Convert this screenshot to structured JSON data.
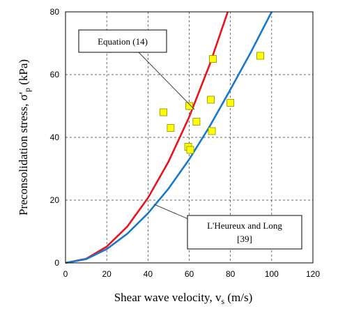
{
  "chart_data": {
    "type": "scatter",
    "xlabel": "Shear wave velocity, v",
    "xlabel_sub": "s",
    "xlabel_unit": " (m/s)",
    "ylabel": "Preconsolidation stress, σ'",
    "ylabel_sub": "p",
    "ylabel_unit": " (kPa)",
    "xlim": [
      0,
      120
    ],
    "ylim": [
      0,
      80
    ],
    "x_ticks": [
      0,
      20,
      40,
      60,
      80,
      100,
      120
    ],
    "y_ticks": [
      0,
      20,
      40,
      60,
      80
    ],
    "grid": "dashed",
    "series": [
      {
        "label": "Equation (14)",
        "kind": "line",
        "color": "#e8141b",
        "x": [
          0,
          10,
          20,
          30,
          40,
          50,
          60,
          70,
          78.7
        ],
        "y": [
          0,
          1.3,
          5.2,
          11.6,
          20.7,
          32.3,
          46.5,
          63.3,
          80
        ]
      },
      {
        "label": "L'Heureux  and Long",
        "label_ref": "[39]",
        "kind": "line",
        "color": "#1a78c8",
        "x": [
          0,
          10,
          20,
          30,
          40,
          50,
          60,
          70,
          80,
          90,
          100
        ],
        "y": [
          0,
          1.2,
          4.4,
          9.3,
          15.8,
          23.7,
          33,
          43.6,
          55.3,
          67.3,
          80
        ]
      },
      {
        "kind": "points",
        "marker": "square",
        "color": "#ffff00",
        "edge_color": "#8c8c00",
        "x": [
          47.5,
          51,
          60,
          59.5,
          60.5,
          63.5,
          70.5,
          71,
          71.5,
          80,
          94.5
        ],
        "y": [
          48,
          43,
          50,
          37,
          36,
          45,
          52,
          42,
          65,
          51,
          66
        ]
      }
    ]
  }
}
